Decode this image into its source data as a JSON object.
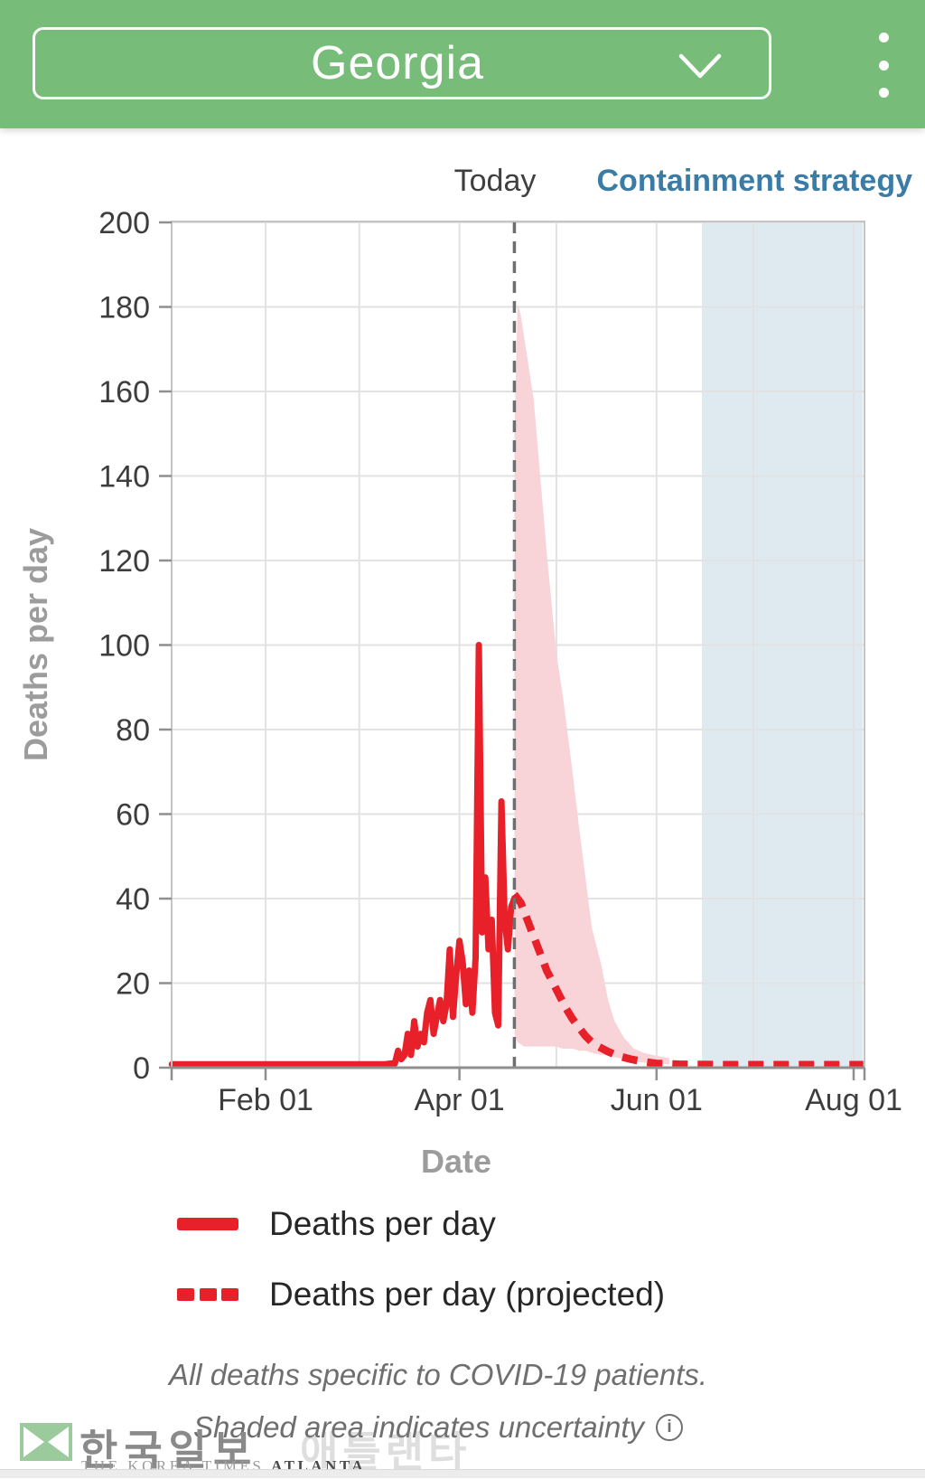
{
  "header": {
    "region_selector_value": "Georgia",
    "chevron_icon": "chevron-down",
    "menu_icon": "kebab-menu"
  },
  "chart": {
    "today_label": "Today",
    "containment_label": "Containment strategy",
    "xlabel": "Date",
    "ylabel": "Deaths per day",
    "y_ticks": [
      0,
      20,
      40,
      60,
      80,
      100,
      120,
      140,
      160,
      180,
      200
    ],
    "x_ticks": [
      {
        "label": "Feb 01",
        "date": "2020-02-01"
      },
      {
        "label": "Apr 01",
        "date": "2020-04-01"
      },
      {
        "label": "Jun 01",
        "date": "2020-06-01"
      },
      {
        "label": "Aug 01",
        "date": "2020-08-01"
      }
    ],
    "grid_months": [
      "2020-02-01",
      "2020-03-01",
      "2020-04-01",
      "2020-05-01",
      "2020-06-01",
      "2020-07-01",
      "2020-08-01"
    ]
  },
  "chart_data": {
    "type": "line",
    "title": "",
    "xlabel": "Date",
    "ylabel": "Deaths per day",
    "ylim": [
      0,
      200
    ],
    "x_range": [
      "2020-01-03",
      "2020-08-04"
    ],
    "grid": true,
    "today": "2020-04-18",
    "containment_start": "2020-06-15",
    "series": [
      {
        "name": "Deaths per day",
        "style": "solid",
        "color": "#e8202a",
        "points": [
          [
            "2020-01-03",
            0.8
          ],
          [
            "2020-02-01",
            0.8
          ],
          [
            "2020-03-01",
            0.8
          ],
          [
            "2020-03-09",
            0.8
          ],
          [
            "2020-03-11",
            1
          ],
          [
            "2020-03-12",
            1
          ],
          [
            "2020-03-13",
            4
          ],
          [
            "2020-03-14",
            2
          ],
          [
            "2020-03-15",
            3
          ],
          [
            "2020-03-16",
            8
          ],
          [
            "2020-03-17",
            3
          ],
          [
            "2020-03-18",
            11
          ],
          [
            "2020-03-19",
            5
          ],
          [
            "2020-03-20",
            8
          ],
          [
            "2020-03-21",
            6
          ],
          [
            "2020-03-22",
            13
          ],
          [
            "2020-03-23",
            16
          ],
          [
            "2020-03-24",
            8
          ],
          [
            "2020-03-25",
            12
          ],
          [
            "2020-03-26",
            16
          ],
          [
            "2020-03-27",
            11
          ],
          [
            "2020-03-28",
            15
          ],
          [
            "2020-03-29",
            28
          ],
          [
            "2020-03-30",
            12
          ],
          [
            "2020-03-31",
            22
          ],
          [
            "2020-04-01",
            30
          ],
          [
            "2020-04-02",
            25
          ],
          [
            "2020-04-03",
            15
          ],
          [
            "2020-04-04",
            23
          ],
          [
            "2020-04-05",
            13
          ],
          [
            "2020-04-06",
            26
          ],
          [
            "2020-04-07",
            100
          ],
          [
            "2020-04-08",
            32
          ],
          [
            "2020-04-09",
            45
          ],
          [
            "2020-04-10",
            28
          ],
          [
            "2020-04-11",
            35
          ],
          [
            "2020-04-12",
            13
          ],
          [
            "2020-04-13",
            10
          ],
          [
            "2020-04-14",
            63
          ],
          [
            "2020-04-15",
            35
          ],
          [
            "2020-04-16",
            28
          ],
          [
            "2020-04-17",
            38
          ],
          [
            "2020-04-18",
            40
          ]
        ]
      },
      {
        "name": "Deaths per day (projected)",
        "style": "dashed",
        "color": "#e8202a",
        "points": [
          [
            "2020-04-18",
            41
          ],
          [
            "2020-04-19",
            40
          ],
          [
            "2020-04-20",
            39
          ],
          [
            "2020-04-21",
            37
          ],
          [
            "2020-04-22",
            35
          ],
          [
            "2020-04-24",
            31
          ],
          [
            "2020-04-26",
            27
          ],
          [
            "2020-04-28",
            23
          ],
          [
            "2020-04-30",
            20
          ],
          [
            "2020-05-02",
            17
          ],
          [
            "2020-05-04",
            14
          ],
          [
            "2020-05-06",
            11.5
          ],
          [
            "2020-05-08",
            9.5
          ],
          [
            "2020-05-10",
            7.5
          ],
          [
            "2020-05-12",
            6
          ],
          [
            "2020-05-14",
            5
          ],
          [
            "2020-05-17",
            3.8
          ],
          [
            "2020-05-20",
            2.8
          ],
          [
            "2020-05-24",
            2
          ],
          [
            "2020-05-28",
            1.4
          ],
          [
            "2020-06-01",
            1
          ],
          [
            "2020-06-08",
            0.8
          ],
          [
            "2020-06-20",
            0.7
          ],
          [
            "2020-07-05",
            0.7
          ],
          [
            "2020-07-20",
            0.7
          ],
          [
            "2020-08-04",
            0.7
          ]
        ]
      }
    ],
    "uncertainty_band": [
      [
        "2020-04-18",
        150,
        8
      ],
      [
        "2020-04-19",
        181,
        6
      ],
      [
        "2020-04-20",
        178,
        5.5
      ],
      [
        "2020-04-21",
        173,
        5
      ],
      [
        "2020-04-22",
        168,
        5
      ],
      [
        "2020-04-24",
        158,
        5
      ],
      [
        "2020-04-26",
        140,
        5
      ],
      [
        "2020-04-28",
        122,
        5
      ],
      [
        "2020-04-30",
        106,
        5
      ],
      [
        "2020-05-01",
        98,
        5
      ],
      [
        "2020-05-03",
        88,
        4.5
      ],
      [
        "2020-05-06",
        70,
        4.5
      ],
      [
        "2020-05-08",
        57,
        4
      ],
      [
        "2020-05-10",
        45,
        4
      ],
      [
        "2020-05-12",
        33,
        3.5
      ],
      [
        "2020-05-15",
        24,
        3
      ],
      [
        "2020-05-17",
        16,
        3
      ],
      [
        "2020-05-19",
        11,
        2.5
      ],
      [
        "2020-05-22",
        7,
        2
      ],
      [
        "2020-05-25",
        4.5,
        1.5
      ],
      [
        "2020-05-28",
        3.5,
        1.2
      ],
      [
        "2020-06-01",
        2.8,
        1
      ],
      [
        "2020-06-05",
        2.2,
        0.8
      ]
    ]
  },
  "legend": {
    "items": [
      {
        "label": "Deaths per day",
        "swatch": "solid-line"
      },
      {
        "label": "Deaths per day (projected)",
        "swatch": "dashed-line"
      }
    ]
  },
  "footnotes": {
    "line1": "All deaths specific to COVID-19 patients.",
    "line2": "Shaded area indicates uncertainty",
    "info_icon": "i"
  },
  "watermark": {
    "title_korean": "한국일보",
    "faint_korean": "애틀랜타",
    "subtitle": "THE KOREA TIMES",
    "subtitle_emphasis": "ATLANTA"
  },
  "colors": {
    "header_green": "#78bc7a",
    "line_red": "#e8202a",
    "band_pink": "#f8d4d8",
    "containment_blue": "#dfe9f0",
    "containment_text": "#3a7ca5",
    "grid": "#e2e2e2",
    "plot_border": "#c4c4c4",
    "axis": "#8f8f8f",
    "today_line": "#6e6e6e"
  }
}
